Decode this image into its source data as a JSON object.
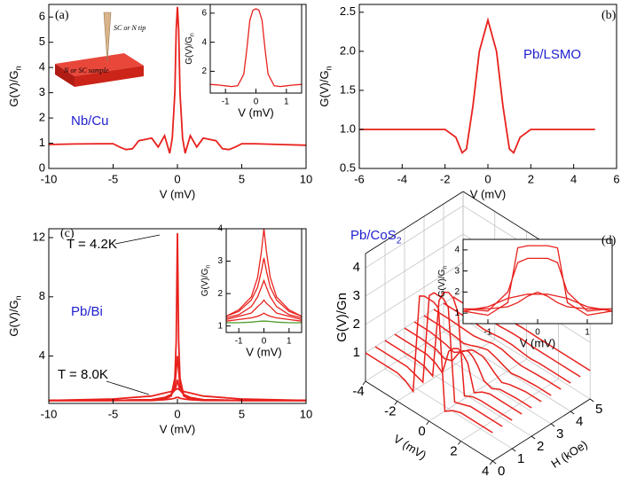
{
  "chart_data": [
    {
      "type": "line",
      "xlabel": "V (mV)",
      "ylabel": {
        "text": "G(V)/G",
        "sub": "n"
      },
      "annotations": [
        "(a)",
        "Nb/Cu",
        "SC or N tip",
        "N or SC sample"
      ],
      "xlim": [
        -10,
        10
      ],
      "xticks": [
        -10,
        -5,
        0,
        5,
        10
      ],
      "ylim": [
        0,
        6.5
      ],
      "yticks": [
        0,
        1,
        2,
        3,
        4,
        5,
        6
      ],
      "x": [
        -10,
        -8,
        -6,
        -5,
        -4.5,
        -4,
        -3.5,
        -3,
        -2.5,
        -2,
        -1.5,
        -1,
        -0.6,
        -0.4,
        -0.2,
        -0.1,
        0,
        0.1,
        0.2,
        0.4,
        0.6,
        1,
        1.5,
        2,
        2.5,
        3,
        3.5,
        4,
        4.5,
        5,
        6,
        8,
        10
      ],
      "series": [
        {
          "color": "#e8211d",
          "values": [
            0.95,
            0.97,
            0.98,
            0.98,
            0.85,
            0.75,
            0.78,
            1.1,
            1.15,
            1.2,
            0.85,
            1.3,
            0.6,
            1.2,
            3.0,
            5.5,
            6.4,
            5.5,
            3.0,
            1.2,
            0.6,
            1.3,
            0.85,
            1.2,
            1.15,
            1.1,
            0.78,
            0.75,
            0.85,
            0.98,
            0.98,
            0.95,
            0.92
          ]
        }
      ],
      "inset": {
        "xlabel": "V (mV)",
        "ylabel": {
          "text": "G(V)/G",
          "sub": "n"
        },
        "xlim": [
          -1.5,
          1.5
        ],
        "xticks": [
          -1,
          0,
          1
        ],
        "ylim": [
          0.5,
          6.6
        ],
        "yticks": [
          2,
          4,
          6
        ],
        "x": [
          -1.5,
          -1.2,
          -1,
          -0.8,
          -0.6,
          -0.4,
          -0.3,
          -0.2,
          -0.1,
          0,
          0.1,
          0.2,
          0.3,
          0.4,
          0.6,
          0.8,
          1,
          1.2,
          1.5
        ],
        "series": [
          {
            "color": "#e8211d",
            "values": [
              1.1,
              1.05,
              1.0,
              0.95,
              1.0,
              1.8,
              3.5,
              5.5,
              6.2,
              6.3,
              6.2,
              5.5,
              3.5,
              1.8,
              1.0,
              0.95,
              1.0,
              1.05,
              1.1
            ]
          }
        ]
      }
    },
    {
      "type": "line",
      "xlabel": "V (mV)",
      "ylabel": {
        "text": "G(V)/G",
        "sub": "n"
      },
      "annotations": [
        "(b)",
        "Pb/LSMO"
      ],
      "xlim": [
        -6,
        6
      ],
      "xticks": [
        -6,
        -4,
        -2,
        0,
        2,
        4,
        6
      ],
      "ylim": [
        0.5,
        2.6
      ],
      "yticks": [
        0.5,
        {
          "value": 1,
          "label": "1.0"
        },
        1.5,
        {
          "value": 2,
          "label": "2.0"
        },
        2.5
      ],
      "x": [
        -6,
        -5,
        -4,
        -3,
        -2,
        -1.5,
        -1.2,
        -1,
        -0.7,
        -0.4,
        0,
        0.4,
        0.7,
        1,
        1.2,
        1.5,
        2,
        3,
        4,
        5
      ],
      "series": [
        {
          "color": "#e8211d",
          "values": [
            1.0,
            1.0,
            1.0,
            1.0,
            1.0,
            0.9,
            0.7,
            0.75,
            1.3,
            2.0,
            2.4,
            2.0,
            1.3,
            0.75,
            0.7,
            0.9,
            1.0,
            1.0,
            1.0,
            1.0
          ]
        }
      ]
    },
    {
      "type": "line",
      "xlabel": "V (mV)",
      "ylabel": {
        "text": "G(V)/G",
        "sub": "n"
      },
      "annotations": [
        "(c)",
        "Pb/Bi",
        "T = 4.2K",
        "T = 8.0K"
      ],
      "xlim": [
        -10,
        10
      ],
      "xticks": [
        -10,
        -5,
        0,
        5,
        10
      ],
      "ylim": [
        0.8,
        12.6
      ],
      "yticks": [
        4,
        8,
        12
      ],
      "x": [
        -10,
        -5,
        -2,
        -1,
        -0.5,
        -0.2,
        -0.1,
        0,
        0.1,
        0.2,
        0.5,
        1,
        2,
        5,
        10
      ],
      "series": [
        {
          "color": "#e8211d",
          "values": [
            1,
            1,
            1.05,
            1.1,
            1.3,
            2.5,
            5,
            12.3,
            5,
            2.5,
            1.3,
            1.1,
            1.05,
            1,
            1
          ]
        },
        {
          "color": "#e8211d",
          "values": [
            1,
            1,
            1.05,
            1.1,
            1.3,
            2,
            3,
            4,
            3,
            2,
            1.3,
            1.1,
            1.05,
            1,
            1
          ]
        },
        {
          "color": "#e8211d",
          "values": [
            1,
            1,
            1.05,
            1.2,
            1.4,
            1.7,
            2,
            2.4,
            2,
            1.7,
            1.4,
            1.2,
            1.05,
            1,
            1
          ]
        },
        {
          "color": "#e8211d",
          "values": [
            1,
            1.1,
            1.3,
            1.5,
            1.6,
            1.7,
            1.75,
            1.8,
            1.75,
            1.7,
            1.6,
            1.5,
            1.3,
            1.1,
            1
          ]
        },
        {
          "color": "#e8211d",
          "values": [
            1,
            1,
            1,
            1.05,
            1.1,
            1.15,
            1.2,
            1.2,
            1.2,
            1.15,
            1.1,
            1.05,
            1,
            1,
            1
          ]
        }
      ],
      "inset": {
        "xlabel": "V (mV)",
        "ylabel": {
          "text": "G(V)/G",
          "sub": "n"
        },
        "xlim": [
          -1.5,
          1.5
        ],
        "xticks": [
          -1,
          0,
          1
        ],
        "ylim": [
          0.8,
          4
        ],
        "yticks": [
          1,
          2,
          3,
          4
        ],
        "x": [
          -1.5,
          -1,
          -0.5,
          -0.25,
          -0.1,
          0,
          0.1,
          0.25,
          0.5,
          1,
          1.5
        ],
        "series": [
          {
            "color": "#e8211d",
            "values": [
              1.3,
              1.5,
              1.9,
              2.5,
              3.3,
              4,
              3.3,
              2.5,
              1.9,
              1.5,
              1.3
            ]
          },
          {
            "color": "#e8211d",
            "values": [
              1.3,
              1.45,
              1.8,
              2.2,
              2.7,
              3.1,
              2.7,
              2.2,
              1.8,
              1.45,
              1.3
            ]
          },
          {
            "color": "#e8211d",
            "values": [
              1.25,
              1.35,
              1.6,
              1.9,
              2.2,
              2.4,
              2.2,
              1.9,
              1.6,
              1.35,
              1.25
            ]
          },
          {
            "color": "#e8211d",
            "values": [
              1.2,
              1.3,
              1.4,
              1.6,
              1.7,
              1.8,
              1.7,
              1.6,
              1.4,
              1.3,
              1.2
            ]
          },
          {
            "color": "#e8211d",
            "values": [
              1.15,
              1.2,
              1.25,
              1.3,
              1.35,
              1.4,
              1.35,
              1.3,
              1.25,
              1.2,
              1.15
            ]
          },
          {
            "color": "#4c9a2a",
            "values": [
              1.1,
              1.1,
              1.12,
              1.14,
              1.15,
              1.15,
              1.15,
              1.14,
              1.12,
              1.1,
              1.1
            ]
          }
        ]
      }
    },
    {
      "type": "line3d",
      "xlabel": "V (mV)",
      "ylabel": "G(V)/Gn",
      "zlabel": "H (kOe)",
      "annotations": [
        "(d)",
        {
          "text": "Pb/CoS",
          "sub": "2"
        }
      ],
      "xlim": [
        -4,
        4
      ],
      "xticks": [
        -4,
        -2,
        0,
        2,
        4
      ],
      "ylim": [
        0,
        4.5
      ],
      "yticks": [
        1,
        2,
        3,
        4
      ],
      "zlim": [
        0,
        5
      ],
      "zticks": [
        0,
        1,
        2,
        3,
        4,
        5
      ],
      "x": [
        -4,
        -3,
        -2,
        -1.5,
        -1,
        -0.6,
        -0.3,
        0,
        0.3,
        0.6,
        1,
        1.5,
        2,
        3,
        4
      ],
      "series": [
        {
          "z": 0,
          "color": "#e8211d",
          "values": [
            1,
            1,
            1,
            0.9,
            0.7,
            4.2,
            4.3,
            4.3,
            4.3,
            4.2,
            0.7,
            0.9,
            1,
            1,
            1
          ]
        },
        {
          "z": 0.5,
          "color": "#e8211d",
          "values": [
            1,
            1,
            1,
            0.9,
            0.8,
            4.0,
            4.2,
            4.2,
            4.2,
            4.0,
            0.8,
            0.9,
            1,
            1,
            1
          ]
        },
        {
          "z": 1,
          "color": "#e8211d",
          "values": [
            1,
            1,
            1,
            0.95,
            0.8,
            3.6,
            4.0,
            4.1,
            4.0,
            3.6,
            0.8,
            0.95,
            1,
            1,
            1
          ]
        },
        {
          "z": 1.5,
          "color": "#e8211d",
          "values": [
            1,
            1,
            1,
            0.9,
            0.7,
            1.6,
            1.8,
            1.9,
            1.8,
            1.6,
            0.7,
            0.9,
            1,
            1,
            1
          ]
        },
        {
          "z": 2,
          "color": "#e8211d",
          "values": [
            1,
            1,
            0.95,
            0.8,
            0.9,
            1.3,
            1.5,
            1.6,
            1.5,
            1.3,
            0.9,
            0.8,
            0.95,
            1,
            1
          ]
        },
        {
          "z": 2.5,
          "color": "#e8211d",
          "values": [
            1,
            1,
            0.9,
            0.8,
            1.0,
            1.2,
            1.3,
            1.3,
            1.3,
            1.2,
            1.0,
            0.8,
            0.9,
            1,
            1
          ]
        },
        {
          "z": 3,
          "color": "#e8211d",
          "values": [
            1,
            1,
            0.95,
            0.9,
            1.0,
            1.1,
            1.15,
            1.2,
            1.15,
            1.1,
            1.0,
            0.9,
            0.95,
            1,
            1
          ]
        },
        {
          "z": 3.5,
          "color": "#e8211d",
          "values": [
            1,
            1,
            0.97,
            0.95,
            1.0,
            1.05,
            1.1,
            1.1,
            1.1,
            1.05,
            1.0,
            0.95,
            0.97,
            1,
            1
          ]
        },
        {
          "z": 4,
          "color": "#e8211d",
          "values": [
            1,
            1,
            1,
            0.97,
            1.0,
            1.03,
            1.05,
            1.05,
            1.05,
            1.03,
            1.0,
            0.97,
            1,
            1,
            1
          ]
        },
        {
          "z": 4.5,
          "color": "#e8211d",
          "values": [
            1,
            1,
            1,
            1,
            1,
            1.02,
            1.03,
            1.03,
            1.03,
            1.02,
            1,
            1,
            1,
            1,
            1
          ]
        },
        {
          "z": 5,
          "color": "#e8211d",
          "values": [
            1,
            1,
            1,
            1,
            1,
            1,
            1.01,
            1.01,
            1.01,
            1,
            1,
            1,
            1,
            1,
            1
          ]
        }
      ],
      "inset": {
        "xlabel": "V (mV)",
        "ylabel": {
          "text": "G(V)/G",
          "sub": "n"
        },
        "xlim": [
          -1.5,
          1.5
        ],
        "xticks": [
          -1,
          0,
          1
        ],
        "ylim": [
          0.5,
          4.5
        ],
        "yticks": [
          1,
          2,
          3,
          4
        ],
        "x": [
          -1.5,
          -1,
          -0.6,
          -0.4,
          -0.2,
          0,
          0.2,
          0.4,
          0.6,
          1,
          1.5
        ],
        "series": [
          {
            "color": "#e8211d",
            "values": [
              1.1,
              0.9,
              1.5,
              4.1,
              4.2,
              4.2,
              4.2,
              4.1,
              1.5,
              0.9,
              1.1
            ]
          },
          {
            "color": "#e8211d",
            "values": [
              1.2,
              1.1,
              2.0,
              3.4,
              3.6,
              3.6,
              3.6,
              3.4,
              2.0,
              1.1,
              1.2
            ]
          },
          {
            "color": "#e8211d",
            "values": [
              1.1,
              1.3,
              1.7,
              1.8,
              1.9,
              1.9,
              1.9,
              1.8,
              1.7,
              1.3,
              1.1
            ]
          },
          {
            "color": "#e8211d",
            "values": [
              1.2,
              1.2,
              1.3,
              1.5,
              1.8,
              2.0,
              1.8,
              1.5,
              1.3,
              1.2,
              1.2
            ]
          }
        ]
      }
    }
  ]
}
